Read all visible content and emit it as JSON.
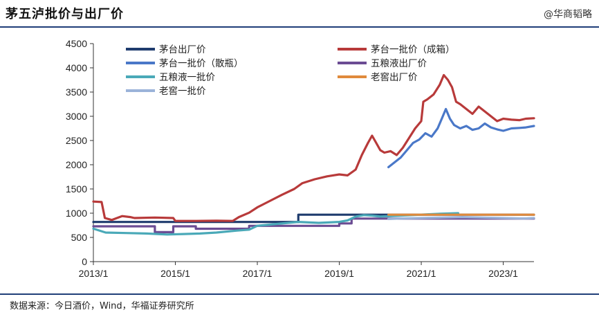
{
  "header": {
    "title": "茅五泸批价与出厂价",
    "watermark": "@华商韬略"
  },
  "footer": {
    "source": "数据来源：今日酒价，Wind，华福证券研究所"
  },
  "chart_data": {
    "type": "line",
    "title": "茅五泸批价与出厂价",
    "xlabel": "",
    "ylabel": "",
    "ylim": [
      0,
      4500
    ],
    "y_ticks": [
      0,
      500,
      1000,
      1500,
      2000,
      2500,
      3000,
      3500,
      4000,
      4500
    ],
    "x_range": [
      2013.0,
      2023.75
    ],
    "x_ticks": [
      "2013/1",
      "2015/1",
      "2017/1",
      "2019/1",
      "2021/1",
      "2023/1"
    ],
    "legend_placement": "top-left (two columns inside plot)",
    "grid": false,
    "series": [
      {
        "name": "茅台出厂价",
        "color": "#1f3c6e",
        "points": [
          [
            2013.0,
            819
          ],
          [
            2018.0,
            819
          ],
          [
            2018.0,
            969
          ],
          [
            2023.75,
            969
          ]
        ]
      },
      {
        "name": "茅台一批价（成箱）",
        "color": "#b83a3a",
        "points": [
          [
            2013.0,
            1240
          ],
          [
            2013.2,
            1230
          ],
          [
            2013.28,
            900
          ],
          [
            2013.45,
            860
          ],
          [
            2013.7,
            940
          ],
          [
            2013.9,
            920
          ],
          [
            2014.0,
            900
          ],
          [
            2014.5,
            910
          ],
          [
            2014.95,
            900
          ],
          [
            2015.0,
            840
          ],
          [
            2015.5,
            840
          ],
          [
            2016.0,
            845
          ],
          [
            2016.4,
            840
          ],
          [
            2016.55,
            920
          ],
          [
            2016.8,
            1010
          ],
          [
            2017.0,
            1120
          ],
          [
            2017.3,
            1250
          ],
          [
            2017.6,
            1380
          ],
          [
            2017.9,
            1500
          ],
          [
            2018.1,
            1620
          ],
          [
            2018.4,
            1700
          ],
          [
            2018.7,
            1760
          ],
          [
            2019.0,
            1800
          ],
          [
            2019.2,
            1780
          ],
          [
            2019.4,
            1900
          ],
          [
            2019.55,
            2200
          ],
          [
            2019.7,
            2450
          ],
          [
            2019.8,
            2600
          ],
          [
            2019.9,
            2450
          ],
          [
            2020.0,
            2300
          ],
          [
            2020.1,
            2250
          ],
          [
            2020.25,
            2280
          ],
          [
            2020.4,
            2200
          ],
          [
            2020.55,
            2350
          ],
          [
            2020.7,
            2550
          ],
          [
            2020.85,
            2750
          ],
          [
            2021.0,
            2900
          ],
          [
            2021.05,
            3300
          ],
          [
            2021.15,
            3350
          ],
          [
            2021.3,
            3450
          ],
          [
            2021.45,
            3650
          ],
          [
            2021.55,
            3850
          ],
          [
            2021.65,
            3750
          ],
          [
            2021.75,
            3600
          ],
          [
            2021.85,
            3300
          ],
          [
            2021.95,
            3250
          ],
          [
            2022.1,
            3150
          ],
          [
            2022.25,
            3050
          ],
          [
            2022.4,
            3200
          ],
          [
            2022.55,
            3100
          ],
          [
            2022.7,
            3000
          ],
          [
            2022.85,
            2900
          ],
          [
            2023.0,
            2950
          ],
          [
            2023.2,
            2930
          ],
          [
            2023.4,
            2920
          ],
          [
            2023.55,
            2950
          ],
          [
            2023.75,
            2960
          ]
        ]
      },
      {
        "name": "茅台一批价（散瓶）",
        "color": "#4a78c8",
        "points": [
          [
            2020.2,
            1950
          ],
          [
            2020.35,
            2050
          ],
          [
            2020.5,
            2150
          ],
          [
            2020.65,
            2300
          ],
          [
            2020.8,
            2450
          ],
          [
            2020.95,
            2520
          ],
          [
            2021.1,
            2650
          ],
          [
            2021.25,
            2580
          ],
          [
            2021.4,
            2750
          ],
          [
            2021.5,
            2950
          ],
          [
            2021.6,
            3150
          ],
          [
            2021.7,
            2950
          ],
          [
            2021.8,
            2820
          ],
          [
            2021.95,
            2750
          ],
          [
            2022.1,
            2800
          ],
          [
            2022.25,
            2720
          ],
          [
            2022.4,
            2750
          ],
          [
            2022.55,
            2850
          ],
          [
            2022.7,
            2770
          ],
          [
            2022.85,
            2730
          ],
          [
            2023.0,
            2700
          ],
          [
            2023.2,
            2750
          ],
          [
            2023.4,
            2760
          ],
          [
            2023.55,
            2770
          ],
          [
            2023.75,
            2800
          ]
        ]
      },
      {
        "name": "五粮液出厂价",
        "color": "#6b4c93",
        "points": [
          [
            2013.0,
            729
          ],
          [
            2014.5,
            729
          ],
          [
            2014.5,
            609
          ],
          [
            2014.95,
            609
          ],
          [
            2014.95,
            729
          ],
          [
            2015.5,
            729
          ],
          [
            2015.5,
            679
          ],
          [
            2016.8,
            679
          ],
          [
            2016.8,
            739
          ],
          [
            2019.0,
            739
          ],
          [
            2019.0,
            789
          ],
          [
            2019.3,
            789
          ],
          [
            2019.3,
            889
          ],
          [
            2023.75,
            889
          ]
        ]
      },
      {
        "name": "老窖出厂价",
        "color": "#e08a3c",
        "points": [
          [
            2020.2,
            969
          ],
          [
            2023.75,
            969
          ]
        ]
      },
      {
        "name": "五粮液一批价",
        "color": "#4aa9b8",
        "points": [
          [
            2013.0,
            680
          ],
          [
            2013.3,
            600
          ],
          [
            2013.8,
            590
          ],
          [
            2014.3,
            580
          ],
          [
            2014.8,
            560
          ],
          [
            2015.2,
            570
          ],
          [
            2015.6,
            580
          ],
          [
            2016.0,
            600
          ],
          [
            2016.5,
            640
          ],
          [
            2016.8,
            660
          ],
          [
            2017.0,
            740
          ],
          [
            2017.5,
            780
          ],
          [
            2018.0,
            820
          ],
          [
            2018.5,
            800
          ],
          [
            2019.0,
            820
          ],
          [
            2019.2,
            850
          ],
          [
            2019.4,
            930
          ],
          [
            2019.6,
            960
          ],
          [
            2019.8,
            950
          ],
          [
            2020.0,
            930
          ],
          [
            2020.5,
            950
          ],
          [
            2021.0,
            970
          ],
          [
            2021.5,
            990
          ],
          [
            2021.9,
            1000
          ]
        ]
      },
      {
        "name": "老窖一批价",
        "color": "#9bb3d9",
        "points": [
          [
            2020.2,
            880
          ],
          [
            2020.5,
            890
          ],
          [
            2021.0,
            900
          ],
          [
            2021.5,
            910
          ],
          [
            2022.0,
            920
          ],
          [
            2022.5,
            910
          ],
          [
            2023.0,
            900
          ],
          [
            2023.5,
            890
          ],
          [
            2023.75,
            900
          ]
        ]
      }
    ]
  }
}
